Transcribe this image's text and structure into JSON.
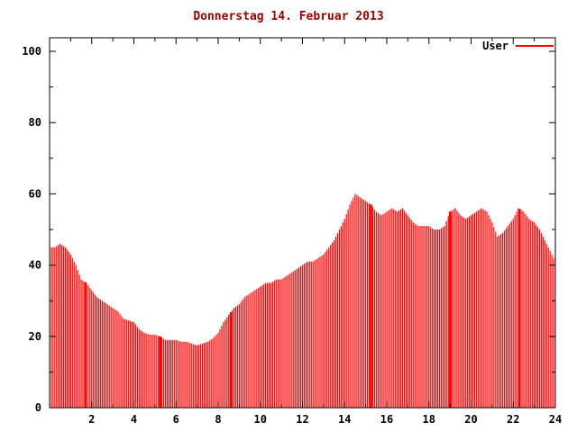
{
  "chart_data": {
    "type": "bar",
    "title": "Donnerstag 14. Februar 2013",
    "xlabel": "",
    "ylabel": "",
    "series": [
      {
        "name": "User",
        "color": "#ff0000"
      }
    ],
    "x_start": 0,
    "x_step": 0.25,
    "x_unit": "hour",
    "values": [
      45,
      45,
      46,
      45,
      43,
      40,
      36,
      35,
      33,
      31,
      30,
      29,
      28,
      27,
      25,
      24.5,
      24,
      22,
      21,
      20.5,
      20.5,
      20,
      19,
      19,
      19,
      18.5,
      18.5,
      18,
      17.5,
      18,
      18.5,
      19.5,
      21,
      24,
      26,
      28,
      29,
      31,
      32,
      33,
      34,
      35,
      35,
      36,
      36,
      37,
      38,
      39,
      40,
      41,
      41,
      42,
      43,
      45,
      47,
      50,
      53,
      57,
      60,
      59,
      58,
      57,
      55,
      54,
      55,
      56,
      55,
      56,
      54,
      52,
      51,
      51,
      51,
      50,
      50,
      51,
      55,
      56,
      54,
      53,
      54,
      55,
      56,
      55,
      52,
      48,
      49,
      51,
      53,
      56,
      55,
      53,
      52,
      50,
      47,
      44,
      41
    ],
    "solid_marks": [
      1.7,
      5.25,
      8.6,
      15.25,
      19.0,
      22.3
    ],
    "xlim": [
      0,
      24
    ],
    "ylim": [
      0,
      103.8
    ],
    "xticks": [
      2,
      4,
      6,
      8,
      10,
      12,
      14,
      16,
      18,
      20,
      22,
      24
    ],
    "yticks": [
      0,
      20,
      40,
      60,
      80,
      100
    ],
    "grid": false,
    "legend_position": "top-right",
    "colors": {
      "bar": "#ff0000",
      "axis": "#000000",
      "text": "#000000",
      "title": "#990000",
      "background": "#ffffff"
    }
  }
}
